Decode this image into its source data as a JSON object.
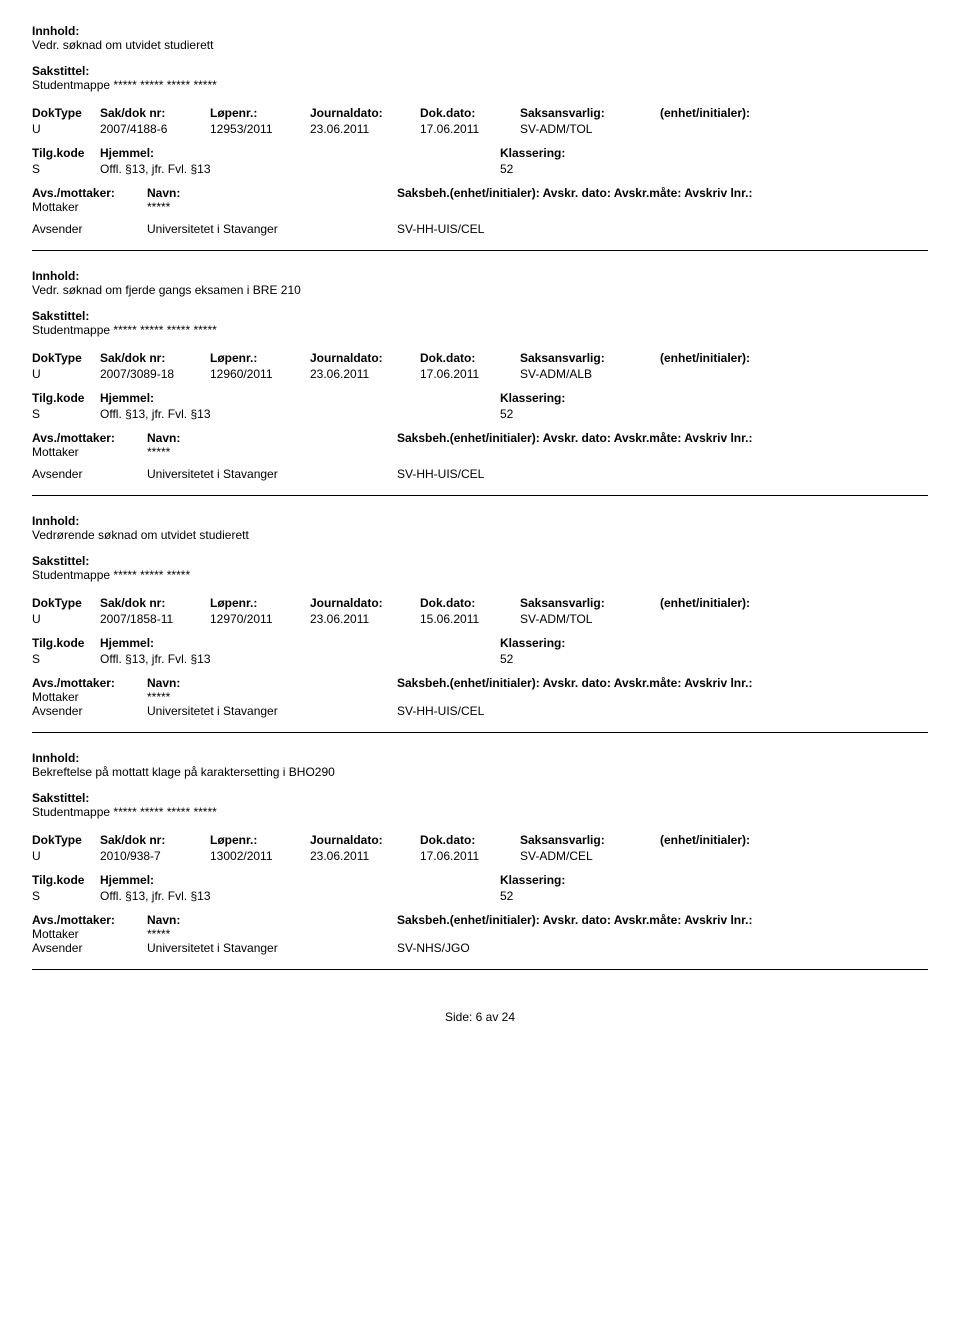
{
  "labels": {
    "innhold": "Innhold:",
    "sakstittel": "Sakstittel:",
    "doktype": "DokType",
    "sakdok": "Sak/dok nr:",
    "lopenr": "Løpenr.:",
    "jdato": "Journaldato:",
    "ddato": "Dok.dato:",
    "saksansvarlig": "Saksansvarlig:",
    "enhet": "(enhet/initialer):",
    "tilgkode": "Tilg.kode",
    "hjemmel": "Hjemmel:",
    "klassering": "Klassering:",
    "avsmottaker": "Avs./mottaker:",
    "navn": "Navn:",
    "saksbeh": "Saksbeh.(enhet/initialer):",
    "avskr_dato": "Avskr. dato:",
    "avskr_mate": "Avskr.måte:",
    "avskriv_lnr": "Avskriv lnr.:",
    "mottaker": "Mottaker",
    "avsender": "Avsender"
  },
  "page_footer": "Side: 6 av 24",
  "records": [
    {
      "innhold": "Vedr. søknad om utvidet studierett",
      "sakstittel": "Studentmappe ***** ***** ***** *****",
      "doktype": "U",
      "sakdok": "2007/4188-6",
      "lopenr": "12953/2011",
      "jdato": "23.06.2011",
      "ddato": "17.06.2011",
      "saksansvarlig": "SV-ADM/TOL",
      "enhet": "",
      "tilgkode": "S",
      "hjemmel": "Offl. §13, jfr. Fvl. §13",
      "klassering": "52",
      "mottaker_navn": "*****",
      "avsender_navn": "Universitetet i Stavanger",
      "saksbeh_unit": "SV-HH-UIS/CEL",
      "show_saksbeh_line": true
    },
    {
      "innhold": "Vedr. søknad om fjerde gangs eksamen i BRE 210",
      "sakstittel": "Studentmappe ***** ***** ***** *****",
      "doktype": "U",
      "sakdok": "2007/3089-18",
      "lopenr": "12960/2011",
      "jdato": "23.06.2011",
      "ddato": "17.06.2011",
      "saksansvarlig": "SV-ADM/ALB",
      "enhet": "",
      "tilgkode": "S",
      "hjemmel": "Offl. §13, jfr. Fvl. §13",
      "klassering": "52",
      "mottaker_navn": "*****",
      "avsender_navn": "Universitetet i Stavanger",
      "saksbeh_unit": "SV-HH-UIS/CEL",
      "show_saksbeh_line": true
    },
    {
      "innhold": "Vedrørende søknad om utvidet studierett",
      "sakstittel": "Studentmappe ***** ***** *****",
      "doktype": "U",
      "sakdok": "2007/1858-11",
      "lopenr": "12970/2011",
      "jdato": "23.06.2011",
      "ddato": "15.06.2011",
      "saksansvarlig": "SV-ADM/TOL",
      "enhet": "",
      "tilgkode": "S",
      "hjemmel": "Offl. §13, jfr. Fvl. §13",
      "klassering": "52",
      "mottaker_navn": "*****",
      "avsender_navn": "Universitetet i Stavanger",
      "saksbeh_unit": "SV-HH-UIS/CEL",
      "show_saksbeh_line": false
    },
    {
      "innhold": "Bekreftelse på mottatt klage på karaktersetting i BHO290",
      "sakstittel": "Studentmappe ***** ***** ***** *****",
      "doktype": "U",
      "sakdok": "2010/938-7",
      "lopenr": "13002/2011",
      "jdato": "23.06.2011",
      "ddato": "17.06.2011",
      "saksansvarlig": "SV-ADM/CEL",
      "enhet": "",
      "tilgkode": "S",
      "hjemmel": "Offl. §13, jfr. Fvl. §13",
      "klassering": "52",
      "mottaker_navn": "*****",
      "avsender_navn": "Universitetet i Stavanger",
      "saksbeh_unit": "SV-NHS/JGO",
      "show_saksbeh_line": false
    }
  ]
}
